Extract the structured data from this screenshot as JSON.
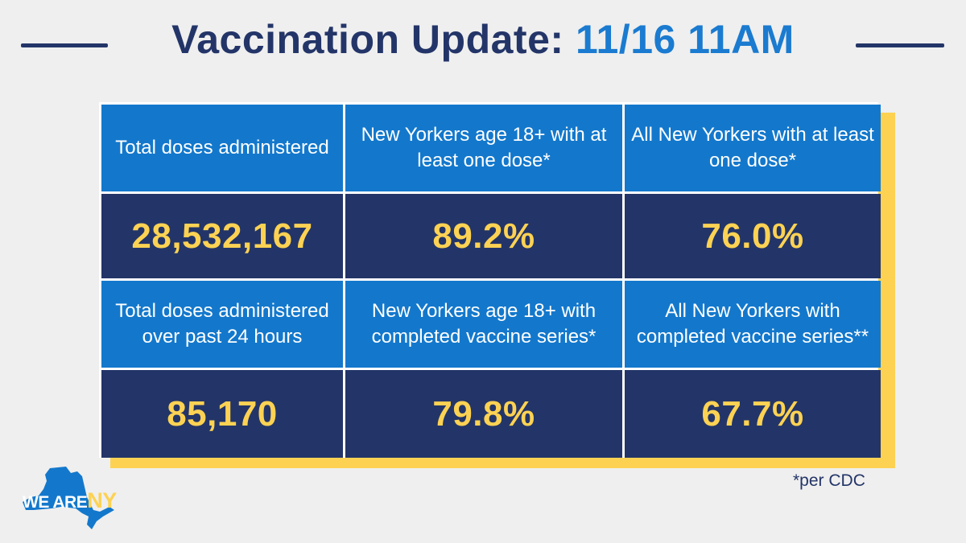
{
  "header": {
    "title_main": "Vaccination Update:",
    "title_date": "11/16 11AM"
  },
  "cells": [
    {
      "label": "Total doses administered",
      "value": "28,532,167"
    },
    {
      "label": "New Yorkers age 18+ with at least one dose*",
      "value": "89.2%"
    },
    {
      "label": "All New Yorkers with at least one dose*",
      "value": "76.0%"
    },
    {
      "label": "Total doses administered over past 24 hours",
      "value": "85,170"
    },
    {
      "label": "New Yorkers age 18+ with completed vaccine series*",
      "value": "79.8%"
    },
    {
      "label": "All New Yorkers with completed vaccine series**",
      "value": "67.7%"
    }
  ],
  "footnote": "*per CDC",
  "logo": {
    "text_we_are": "WE ARE",
    "text_ny": "NY",
    "icon": "new-york-state-map-icon"
  },
  "colors": {
    "navy": "#233568",
    "blue": "#1378cc",
    "yellow": "#fdd253",
    "background": "#efefef"
  }
}
